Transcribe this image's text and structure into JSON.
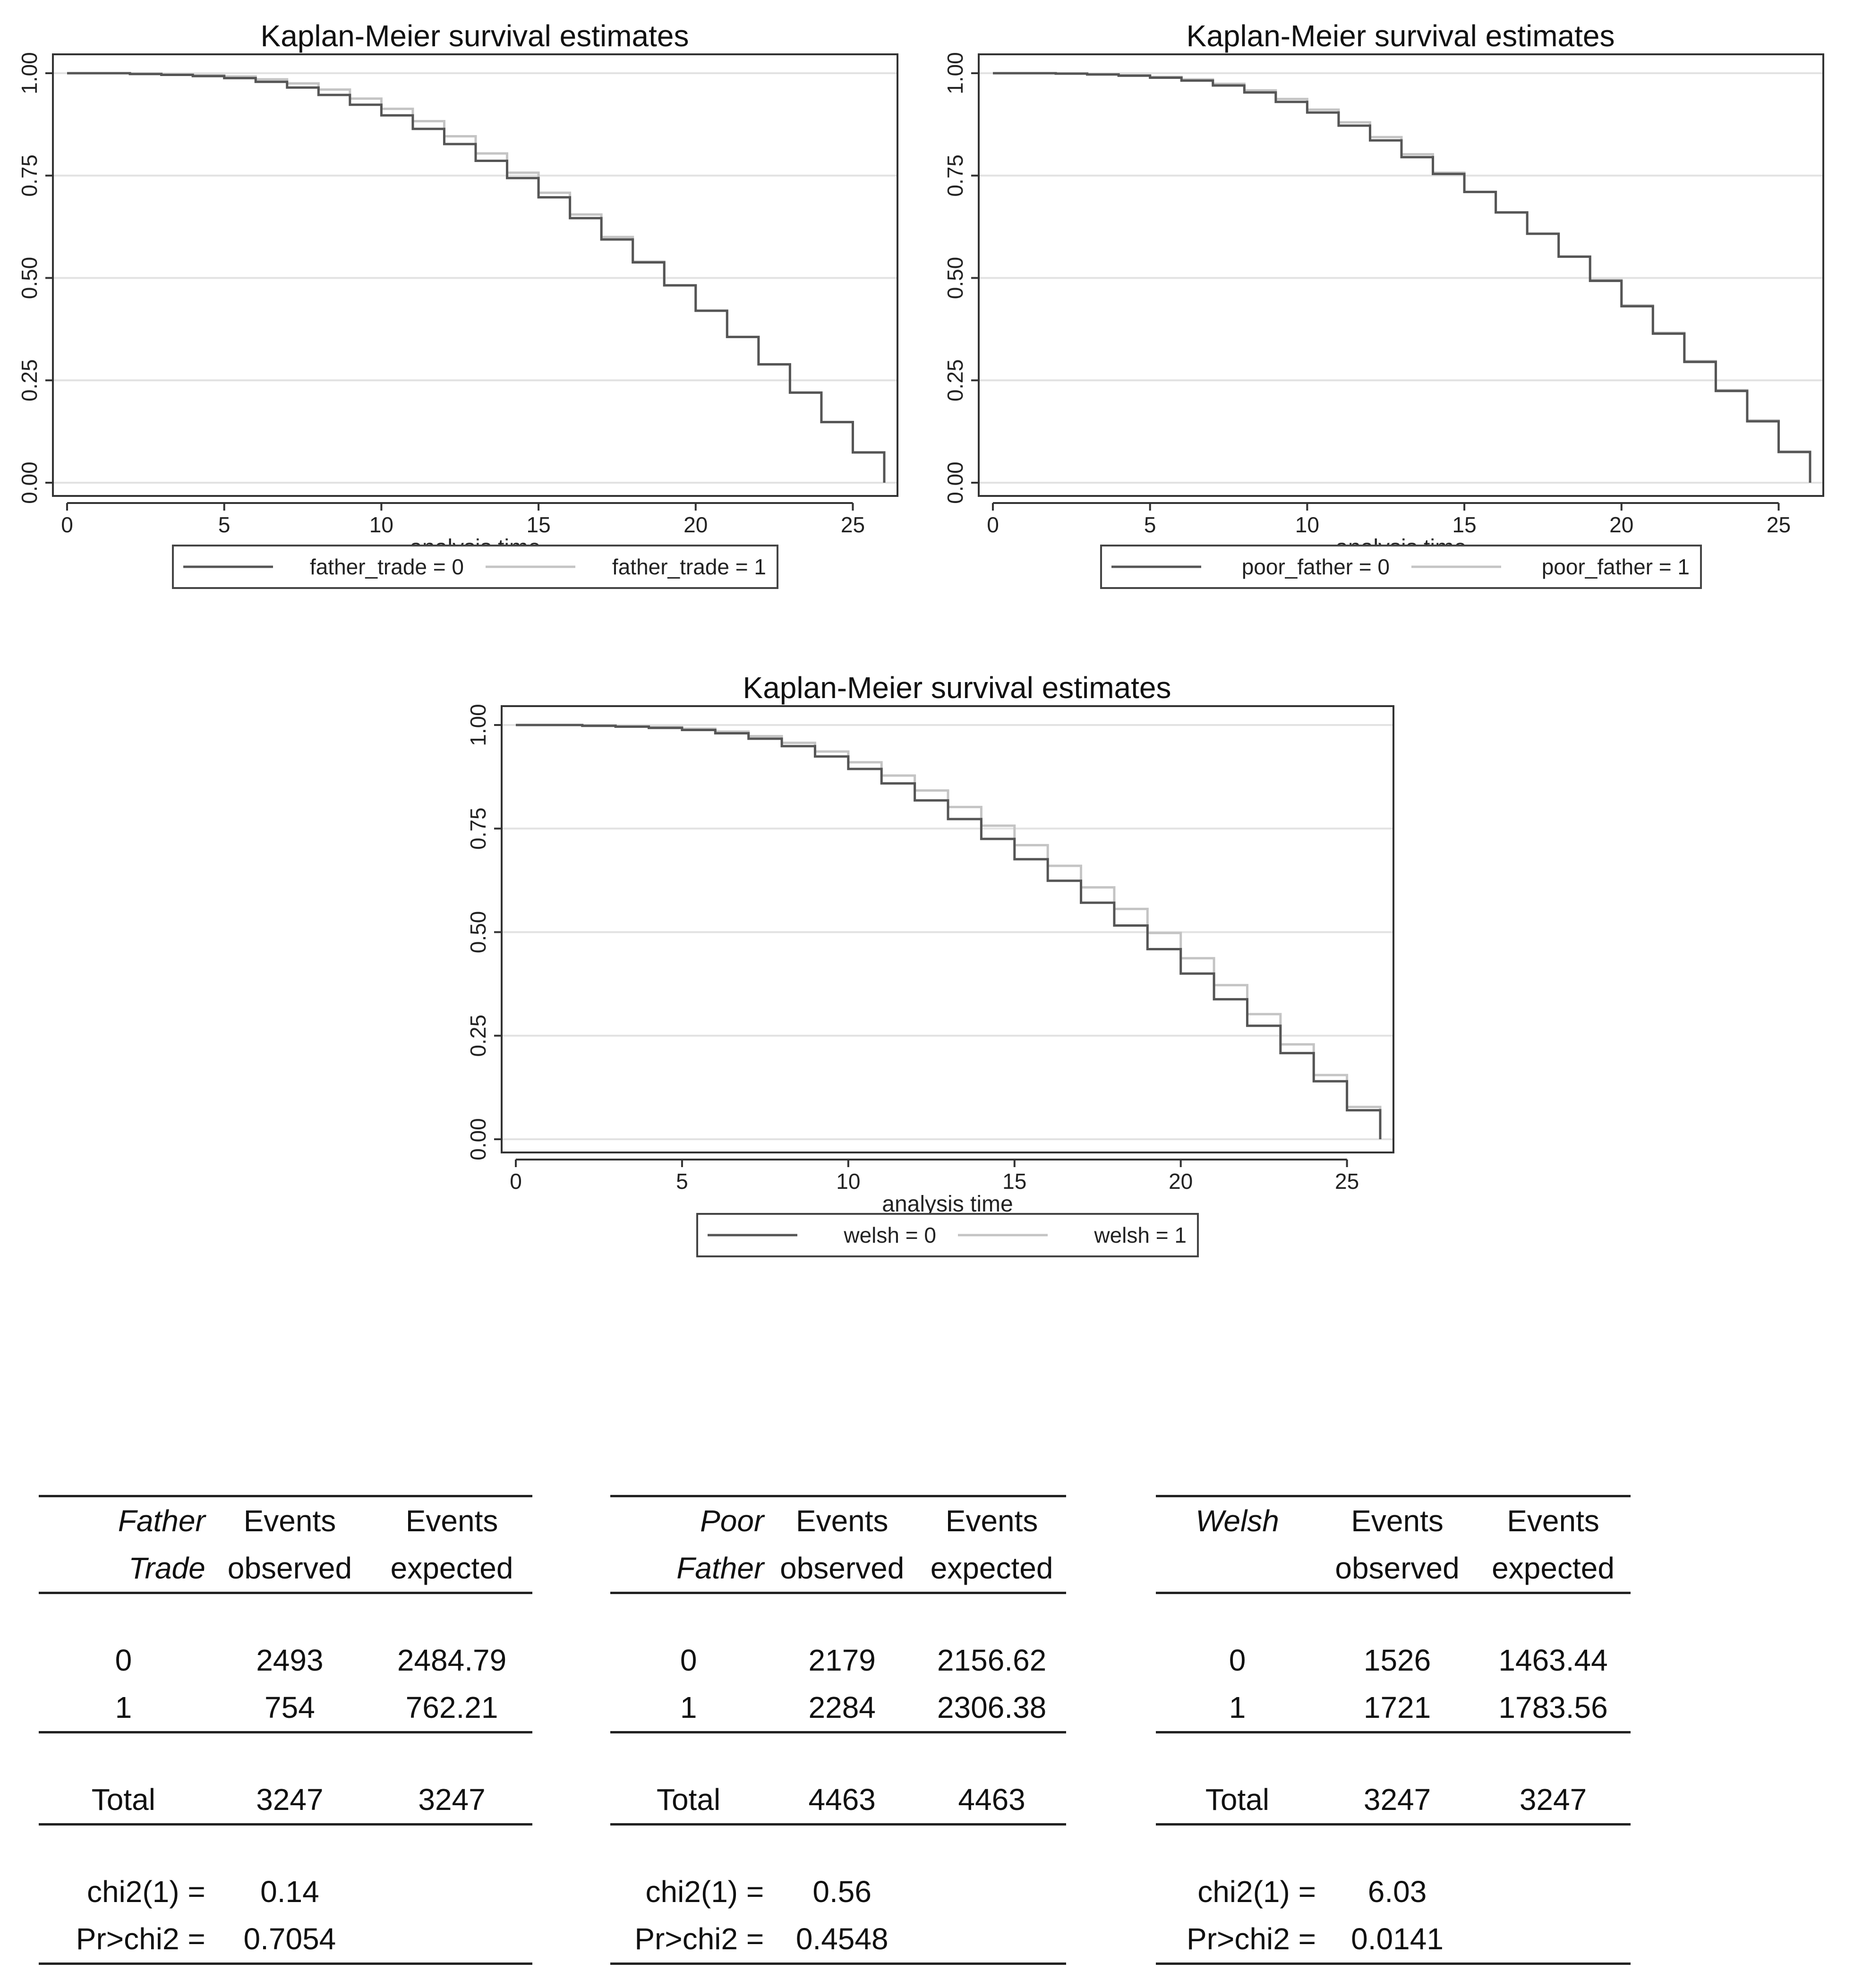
{
  "chart_data": [
    {
      "type": "line",
      "title": "Kaplan-Meier survival estimates",
      "xlabel": "analysis time",
      "ylabel": "",
      "xlim": [
        0,
        26
      ],
      "ylim": [
        0,
        1
      ],
      "x_ticks": [
        "0",
        "5",
        "10",
        "15",
        "20",
        "25"
      ],
      "y_ticks": [
        "0.00",
        "0.25",
        "0.50",
        "0.75",
        "1.00"
      ],
      "grid": true,
      "legend_position": "bottom",
      "colors": {
        "series0": "#555555",
        "series1": "#c4c4c4"
      },
      "x": [
        0,
        1,
        2,
        3,
        4,
        5,
        6,
        7,
        8,
        9,
        10,
        11,
        12,
        13,
        14,
        15,
        16,
        17,
        18,
        19,
        20,
        21,
        22,
        23,
        24,
        25,
        26
      ],
      "series": [
        {
          "name": "father_trade = 0",
          "values": [
            1.0,
            1.0,
            0.998,
            0.996,
            0.993,
            0.988,
            0.979,
            0.965,
            0.947,
            0.923,
            0.897,
            0.864,
            0.827,
            0.786,
            0.744,
            0.697,
            0.646,
            0.594,
            0.538,
            0.482,
            0.42,
            0.356,
            0.289,
            0.22,
            0.148,
            0.074,
            0.0
          ]
        },
        {
          "name": "father_trade = 1",
          "values": [
            1.0,
            1.0,
            0.999,
            0.997,
            0.995,
            0.992,
            0.985,
            0.975,
            0.96,
            0.938,
            0.913,
            0.883,
            0.846,
            0.804,
            0.757,
            0.708,
            0.655,
            0.6,
            0.54,
            0.482,
            0.42,
            0.356,
            0.289,
            0.22,
            0.148,
            0.074,
            0.0
          ]
        }
      ]
    },
    {
      "type": "line",
      "title": "Kaplan-Meier survival estimates",
      "xlabel": "analysis time",
      "ylabel": "",
      "xlim": [
        0,
        26
      ],
      "ylim": [
        0,
        1
      ],
      "x_ticks": [
        "0",
        "5",
        "10",
        "15",
        "20",
        "25"
      ],
      "y_ticks": [
        "0.00",
        "0.25",
        "0.50",
        "0.75",
        "1.00"
      ],
      "grid": true,
      "legend_position": "bottom",
      "colors": {
        "series0": "#555555",
        "series1": "#c4c4c4"
      },
      "x": [
        0,
        1,
        2,
        3,
        4,
        5,
        6,
        7,
        8,
        9,
        10,
        11,
        12,
        13,
        14,
        15,
        16,
        17,
        18,
        19,
        20,
        21,
        22,
        23,
        24,
        25,
        26
      ],
      "series": [
        {
          "name": "poor_father = 0",
          "values": [
            1.0,
            1.0,
            0.999,
            0.997,
            0.994,
            0.989,
            0.982,
            0.97,
            0.953,
            0.93,
            0.904,
            0.872,
            0.836,
            0.795,
            0.754,
            0.71,
            0.66,
            0.608,
            0.552,
            0.493,
            0.431,
            0.364,
            0.295,
            0.224,
            0.15,
            0.075,
            0.0
          ]
        },
        {
          "name": "poor_father = 1",
          "values": [
            1.0,
            1.0,
            0.999,
            0.997,
            0.995,
            0.991,
            0.985,
            0.974,
            0.958,
            0.937,
            0.911,
            0.88,
            0.844,
            0.802,
            0.757,
            0.71,
            0.66,
            0.608,
            0.552,
            0.495,
            0.433,
            0.366,
            0.297,
            0.226,
            0.152,
            0.076,
            0.0
          ]
        }
      ]
    },
    {
      "type": "line",
      "title": "Kaplan-Meier survival estimates",
      "xlabel": "analysis time",
      "ylabel": "",
      "xlim": [
        0,
        26
      ],
      "ylim": [
        0,
        1
      ],
      "x_ticks": [
        "0",
        "5",
        "10",
        "15",
        "20",
        "25"
      ],
      "y_ticks": [
        "0.00",
        "0.25",
        "0.50",
        "0.75",
        "1.00"
      ],
      "grid": true,
      "legend_position": "bottom",
      "colors": {
        "series0": "#555555",
        "series1": "#c4c4c4"
      },
      "x": [
        0,
        1,
        2,
        3,
        4,
        5,
        6,
        7,
        8,
        9,
        10,
        11,
        12,
        13,
        14,
        15,
        16,
        17,
        18,
        19,
        20,
        21,
        22,
        23,
        24,
        25,
        26
      ],
      "series": [
        {
          "name": "welsh = 0",
          "values": [
            1.0,
            1.0,
            0.998,
            0.996,
            0.993,
            0.988,
            0.98,
            0.967,
            0.949,
            0.924,
            0.894,
            0.859,
            0.818,
            0.773,
            0.725,
            0.676,
            0.624,
            0.571,
            0.516,
            0.459,
            0.4,
            0.338,
            0.274,
            0.208,
            0.14,
            0.07,
            0.0
          ]
        },
        {
          "name": "welsh = 1",
          "values": [
            1.0,
            1.0,
            0.999,
            0.997,
            0.995,
            0.991,
            0.984,
            0.973,
            0.957,
            0.936,
            0.91,
            0.878,
            0.842,
            0.802,
            0.757,
            0.71,
            0.66,
            0.608,
            0.556,
            0.498,
            0.437,
            0.372,
            0.302,
            0.229,
            0.155,
            0.078,
            0.0
          ]
        }
      ]
    },
    {
      "type": "table",
      "header": {
        "group_line1": "Father",
        "group_line2": "Trade",
        "c1_line1": "Events",
        "c1_line2": "observed",
        "c2_line1": "Events",
        "c2_line2": "expected"
      },
      "rows": [
        {
          "label": "0",
          "observed": "2493",
          "expected": "2484.79"
        },
        {
          "label": "1",
          "observed": "754",
          "expected": "762.21"
        }
      ],
      "total": {
        "label": "Total",
        "observed": "3247",
        "expected": "3247"
      },
      "chi2": {
        "label": "chi2(1) =",
        "value": "0.14"
      },
      "pr": {
        "label": "Pr>chi2 =",
        "value": "0.7054"
      }
    },
    {
      "type": "table",
      "header": {
        "group_line1": "Poor",
        "group_line2": "Father",
        "c1_line1": "Events",
        "c1_line2": "observed",
        "c2_line1": "Events",
        "c2_line2": "expected"
      },
      "rows": [
        {
          "label": "0",
          "observed": "2179",
          "expected": "2156.62"
        },
        {
          "label": "1",
          "observed": "2284",
          "expected": "2306.38"
        }
      ],
      "total": {
        "label": "Total",
        "observed": "4463",
        "expected": "4463"
      },
      "chi2": {
        "label": "chi2(1) =",
        "value": "0.56"
      },
      "pr": {
        "label": "Pr>chi2 =",
        "value": "0.4548"
      }
    },
    {
      "type": "table",
      "header": {
        "group_line1": "Welsh",
        "group_line2": "",
        "c1_line1": "Events",
        "c1_line2": "observed",
        "c2_line1": "Events",
        "c2_line2": "expected"
      },
      "rows": [
        {
          "label": "0",
          "observed": "1526",
          "expected": "1463.44"
        },
        {
          "label": "1",
          "observed": "1721",
          "expected": "1783.56"
        }
      ],
      "total": {
        "label": "Total",
        "observed": "3247",
        "expected": "3247"
      },
      "chi2": {
        "label": "chi2(1) =",
        "value": "6.03"
      },
      "pr": {
        "label": "Pr>chi2 =",
        "value": "0.0141"
      }
    }
  ]
}
